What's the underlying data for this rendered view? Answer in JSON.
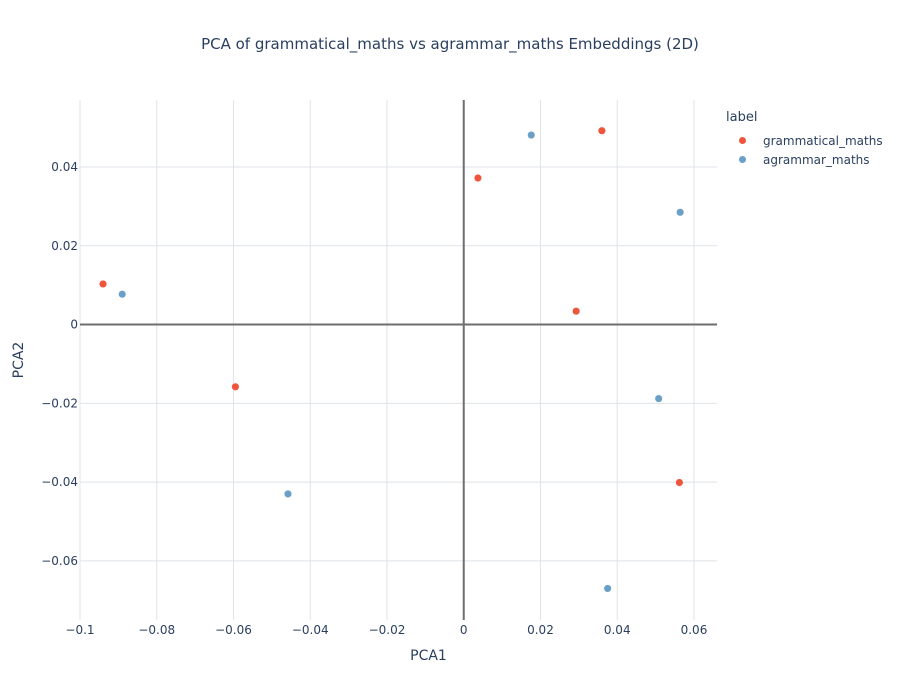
{
  "chart_data": {
    "type": "scatter",
    "title": "PCA of grammatical_maths vs agrammar_maths Embeddings (2D)",
    "xlabel": "PCA1",
    "ylabel": "PCA2",
    "xlim": [
      -0.1,
      0.066
    ],
    "ylim": [
      -0.075,
      0.057
    ],
    "xticks": [
      -0.1,
      -0.08,
      -0.06,
      -0.04,
      -0.02,
      0,
      0.02,
      0.04,
      0.06
    ],
    "xtick_labels": [
      "−0.1",
      "−0.08",
      "−0.06",
      "−0.04",
      "−0.02",
      "0",
      "0.02",
      "0.04",
      "0.06"
    ],
    "yticks": [
      -0.06,
      -0.04,
      -0.02,
      0,
      0.02,
      0.04
    ],
    "ytick_labels": [
      "−0.06",
      "−0.04",
      "−0.02",
      "0",
      "0.02",
      "0.04"
    ],
    "grid": true,
    "legend_title": "label",
    "legend_position": "right",
    "series": [
      {
        "name": "grammatical_maths",
        "color": "#EF553B",
        "points": [
          {
            "x": -0.094,
            "y": 0.0103
          },
          {
            "x": -0.0595,
            "y": -0.0158
          },
          {
            "x": 0.0037,
            "y": 0.0372
          },
          {
            "x": 0.0293,
            "y": 0.0034
          },
          {
            "x": 0.036,
            "y": 0.0492
          },
          {
            "x": 0.0562,
            "y": -0.0401
          }
        ]
      },
      {
        "name": "agrammar_maths",
        "color": "#6A9FC8",
        "points": [
          {
            "x": -0.089,
            "y": 0.0077
          },
          {
            "x": -0.0458,
            "y": -0.043
          },
          {
            "x": 0.0176,
            "y": 0.0481
          },
          {
            "x": 0.0375,
            "y": -0.067
          },
          {
            "x": 0.0508,
            "y": -0.0188
          },
          {
            "x": 0.0564,
            "y": 0.0285
          }
        ]
      }
    ]
  }
}
